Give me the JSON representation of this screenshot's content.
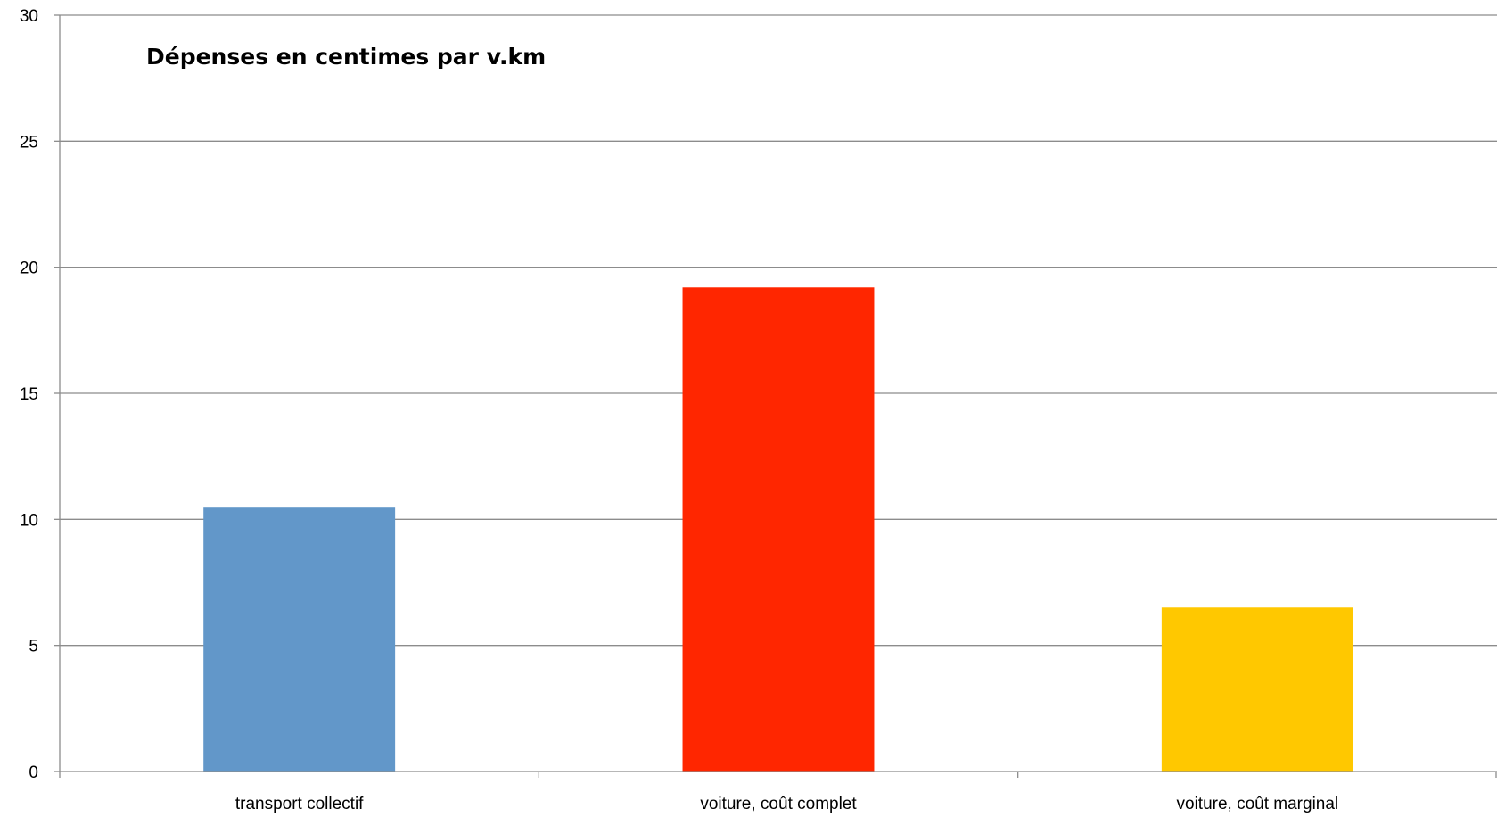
{
  "chart_data": {
    "type": "bar",
    "title": "Dépenses en centimes par v.km",
    "categories": [
      "transport collectif",
      "voiture, coût complet",
      "voiture, coût marginal"
    ],
    "values": [
      10.5,
      19.2,
      6.5
    ],
    "colors": [
      "#6297c9",
      "#ff2600",
      "#ffc800"
    ],
    "xlabel": "",
    "ylabel": "",
    "ylim": [
      0,
      30
    ],
    "yticks": [
      "0",
      "5",
      "10",
      "15",
      "20",
      "25",
      "30"
    ],
    "grid": true,
    "gridline_color": "#8c8c8c",
    "legend": "none"
  }
}
